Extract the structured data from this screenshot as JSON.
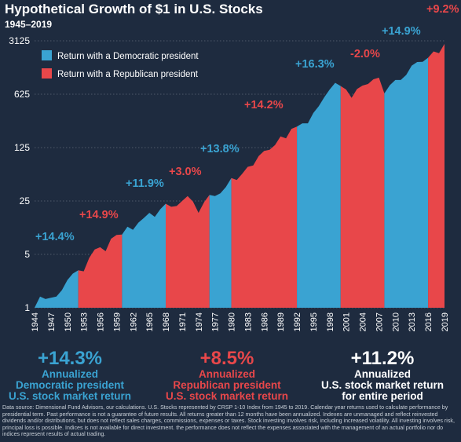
{
  "chart_data": {
    "type": "area",
    "title": "Hypothetical Growth of $1 in U.S. Stocks",
    "subtitle": "1945–2019",
    "y_scale": "log",
    "ylim": [
      1,
      3125
    ],
    "y_ticks": [
      "1",
      "5",
      "25",
      "125",
      "625",
      "3125"
    ],
    "y_tick_values": [
      1,
      5,
      25,
      125,
      625,
      3125
    ],
    "x_tick_labels": [
      "1944",
      "1947",
      "1950",
      "1953",
      "1956",
      "1959",
      "1962",
      "1965",
      "1968",
      "1971",
      "1974",
      "1977",
      "1980",
      "1983",
      "1986",
      "1989",
      "1992",
      "1995",
      "1998",
      "2001",
      "2004",
      "2007",
      "2010",
      "2013",
      "2016",
      "2019"
    ],
    "xlim": [
      1944,
      2019
    ],
    "grid": "horizontal",
    "legend": {
      "placement": "top-left",
      "entries": [
        {
          "label": "Return with a Democratic president",
          "color": "#3aa3d2"
        },
        {
          "label": "Return with a Republican president",
          "color": "#e8474a"
        }
      ]
    },
    "colors": {
      "democratic": "#3aa3d2",
      "republican": "#e8474a",
      "background": "#1e2b3f"
    },
    "series": [
      {
        "x": [
          1944,
          1945,
          1946,
          1947,
          1948,
          1949,
          1950,
          1951,
          1952,
          1953,
          1954,
          1955,
          1956,
          1957,
          1958,
          1959,
          1960,
          1961,
          1962,
          1963,
          1964,
          1965,
          1966,
          1967,
          1968,
          1969,
          1970,
          1971,
          1972,
          1973,
          1974,
          1975,
          1976,
          1977,
          1978,
          1979,
          1980,
          1981,
          1982,
          1983,
          1984,
          1985,
          1986,
          1987,
          1988,
          1989,
          1990,
          1991,
          1992,
          1993,
          1994,
          1995,
          1996,
          1997,
          1998,
          1999,
          2000,
          2001,
          2002,
          2003,
          2004,
          2005,
          2006,
          2007,
          2008,
          2009,
          2010,
          2011,
          2012,
          2013,
          2014,
          2015,
          2016,
          2017,
          2018,
          2019
        ],
        "y": [
          1.0,
          1.4,
          1.3,
          1.35,
          1.4,
          1.7,
          2.3,
          2.8,
          3.1,
          3.0,
          4.5,
          5.8,
          6.2,
          5.5,
          8.0,
          9.0,
          9.1,
          11.5,
          10.5,
          13.0,
          15.0,
          17.5,
          15.5,
          19.5,
          23.0,
          21.0,
          21.5,
          25.0,
          29.0,
          24.5,
          17.5,
          24.0,
          30.0,
          29.0,
          31.5,
          38.0,
          50.0,
          47.0,
          57.0,
          70.0,
          73.0,
          97.0,
          113.0,
          117.0,
          135.0,
          175.0,
          165.0,
          220.0,
          235.0,
          260.0,
          260.0,
          355.0,
          435.0,
          570.0,
          720.0,
          880.0,
          800.0,
          720.0,
          560.0,
          730.0,
          810.0,
          850.0,
          980.0,
          1030.0,
          640.0,
          820.0,
          960.0,
          960.0,
          1120.0,
          1480.0,
          1650.0,
          1660.0,
          1880.0,
          2270.0,
          2150.0,
          2850.0
        ]
      }
    ],
    "periods": [
      {
        "start": 1944,
        "end": 1952,
        "party": "democratic",
        "label": "+14.4%"
      },
      {
        "start": 1952,
        "end": 1960,
        "party": "republican",
        "label": "+14.9%"
      },
      {
        "start": 1960,
        "end": 1968,
        "party": "democratic",
        "label": "+11.9%"
      },
      {
        "start": 1968,
        "end": 1976,
        "party": "republican",
        "label": "+3.0%"
      },
      {
        "start": 1976,
        "end": 1980,
        "party": "democratic",
        "label": "+13.8%"
      },
      {
        "start": 1980,
        "end": 1992,
        "party": "republican",
        "label": "+14.2%"
      },
      {
        "start": 1992,
        "end": 2000,
        "party": "democratic",
        "label": "+16.3%"
      },
      {
        "start": 2000,
        "end": 2008,
        "party": "republican",
        "label": "-2.0%"
      },
      {
        "start": 2008,
        "end": 2016,
        "party": "democratic",
        "label": "+14.9%"
      },
      {
        "start": 2016,
        "end": 2019,
        "party": "republican",
        "label": "+9.2%"
      }
    ]
  },
  "summary": {
    "democratic": {
      "value": "+14.3%",
      "line1": "Annualized",
      "line2": "Democratic president",
      "line3": "U.S. stock market return"
    },
    "republican": {
      "value": "+8.5%",
      "line1": "Annualized",
      "line2": "Republican president",
      "line3": "U.S. stock market return"
    },
    "overall": {
      "value": "+11.2%",
      "line1": "Annualized",
      "line2": "U.S. stock market return",
      "line3": "for entire period"
    }
  },
  "footnote": "Data source: Dimensional Fund Advisors, our calculations. U.S. Stocks represented by CRSP 1-10 Index from 1945 to 2019. Calendar year returns used to calculate performance by presidential term. Past performance is not a guarantee of future results. All returns greater than 12 months have been annualized. Indexes are unmanaged and reflect reinvested dividends and/or distributions, but does not reflect sales charges, commissions, expenses or taxes. Stock investing involves risk, including increased volatility. All investing involves risk, principal loss is possible. Indices is not available for direct investment. the performance does not reflect the expenses associated with the management of an actual portfolio nor do indices represent results of actual trading."
}
